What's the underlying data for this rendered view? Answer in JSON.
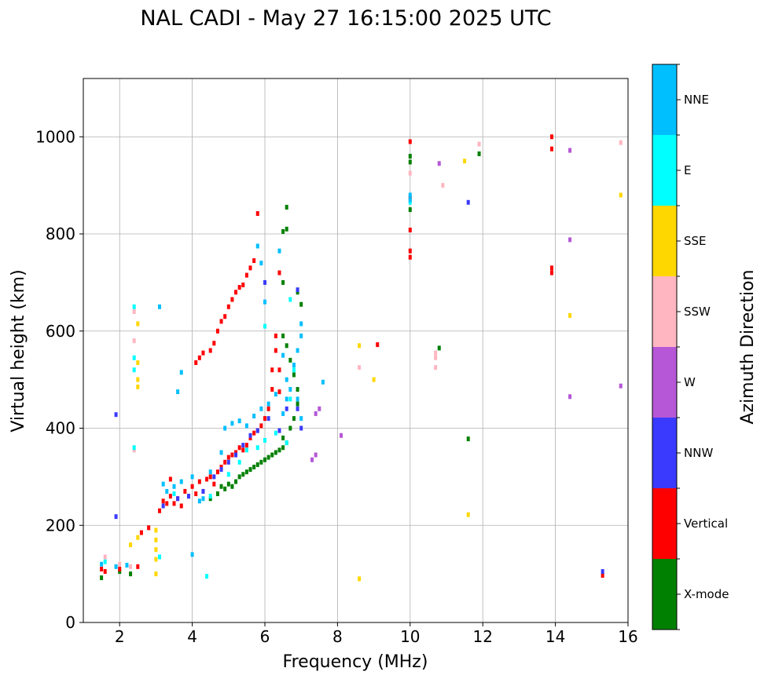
{
  "chart_data": {
    "type": "scatter",
    "title": "NAL CADI - May 27 16:15:00 2025 UTC",
    "xlabel": "Frequency (MHz)",
    "ylabel": "Virtual height (km)",
    "xlim": [
      1,
      16
    ],
    "ylim": [
      0,
      1120
    ],
    "xticks": [
      2,
      4,
      6,
      8,
      10,
      12,
      14,
      16
    ],
    "yticks": [
      0,
      200,
      400,
      600,
      800,
      1000
    ],
    "grid": true,
    "colorbar": {
      "label": "Azimuth Direction",
      "categories": [
        {
          "name": "X-mode",
          "color": "#008000"
        },
        {
          "name": "Vertical",
          "color": "#ff0000"
        },
        {
          "name": "NNW",
          "color": "#3a3aff"
        },
        {
          "name": "W",
          "color": "#b557d6"
        },
        {
          "name": "SSW",
          "color": "#ffb6c1"
        },
        {
          "name": "SSE",
          "color": "#ffd700"
        },
        {
          "name": "E",
          "color": "#00ffff"
        },
        {
          "name": "NNE",
          "color": "#00bfff"
        }
      ]
    },
    "series": [
      {
        "name": "X-mode",
        "points": [
          [
            1.5,
            92
          ],
          [
            2.0,
            105
          ],
          [
            2.3,
            100
          ],
          [
            4.5,
            255
          ],
          [
            4.7,
            265
          ],
          [
            4.8,
            280
          ],
          [
            4.9,
            275
          ],
          [
            5.0,
            285
          ],
          [
            5.1,
            280
          ],
          [
            5.2,
            290
          ],
          [
            5.3,
            300
          ],
          [
            5.4,
            305
          ],
          [
            5.5,
            310
          ],
          [
            5.6,
            315
          ],
          [
            5.7,
            320
          ],
          [
            5.8,
            325
          ],
          [
            5.9,
            330
          ],
          [
            6.0,
            335
          ],
          [
            6.1,
            340
          ],
          [
            6.2,
            345
          ],
          [
            6.3,
            350
          ],
          [
            6.4,
            355
          ],
          [
            6.5,
            360
          ],
          [
            6.5,
            380
          ],
          [
            6.6,
            370
          ],
          [
            6.7,
            400
          ],
          [
            6.8,
            420
          ],
          [
            6.9,
            450
          ],
          [
            6.9,
            480
          ],
          [
            6.8,
            510
          ],
          [
            6.7,
            540
          ],
          [
            6.6,
            570
          ],
          [
            6.5,
            590
          ],
          [
            6.5,
            805
          ],
          [
            6.6,
            810
          ],
          [
            6.6,
            855
          ],
          [
            6.9,
            680
          ],
          [
            7.0,
            655
          ],
          [
            6.4,
            720
          ],
          [
            6.5,
            700
          ],
          [
            10.0,
            960
          ],
          [
            10.0,
            948
          ],
          [
            10.0,
            850
          ],
          [
            10.8,
            565
          ],
          [
            11.9,
            965
          ],
          [
            11.6,
            378
          ]
        ]
      },
      {
        "name": "Vertical",
        "points": [
          [
            1.5,
            110
          ],
          [
            1.6,
            105
          ],
          [
            2.0,
            110
          ],
          [
            2.5,
            115
          ],
          [
            2.6,
            185
          ],
          [
            2.8,
            195
          ],
          [
            3.1,
            230
          ],
          [
            3.2,
            250
          ],
          [
            3.3,
            245
          ],
          [
            3.4,
            260
          ],
          [
            3.5,
            245
          ],
          [
            3.6,
            255
          ],
          [
            3.7,
            240
          ],
          [
            3.8,
            270
          ],
          [
            3.9,
            260
          ],
          [
            4.0,
            280
          ],
          [
            4.1,
            265
          ],
          [
            4.2,
            290
          ],
          [
            4.3,
            270
          ],
          [
            4.4,
            295
          ],
          [
            4.5,
            300
          ],
          [
            4.6,
            285
          ],
          [
            4.7,
            310
          ],
          [
            4.8,
            320
          ],
          [
            4.9,
            330
          ],
          [
            5.0,
            340
          ],
          [
            5.1,
            345
          ],
          [
            5.2,
            350
          ],
          [
            5.3,
            360
          ],
          [
            5.4,
            355
          ],
          [
            5.5,
            365
          ],
          [
            5.6,
            380
          ],
          [
            5.7,
            390
          ],
          [
            5.8,
            395
          ],
          [
            5.9,
            405
          ],
          [
            6.0,
            420
          ],
          [
            6.1,
            440
          ],
          [
            6.2,
            480
          ],
          [
            6.2,
            520
          ],
          [
            6.3,
            560
          ],
          [
            6.3,
            590
          ],
          [
            6.4,
            520
          ],
          [
            6.4,
            475
          ],
          [
            6.4,
            720
          ],
          [
            4.1,
            535
          ],
          [
            4.2,
            545
          ],
          [
            4.3,
            555
          ],
          [
            4.5,
            560
          ],
          [
            4.6,
            575
          ],
          [
            4.7,
            600
          ],
          [
            4.8,
            620
          ],
          [
            4.9,
            630
          ],
          [
            5.0,
            650
          ],
          [
            5.1,
            665
          ],
          [
            5.2,
            680
          ],
          [
            5.3,
            690
          ],
          [
            5.4,
            695
          ],
          [
            5.5,
            715
          ],
          [
            5.6,
            730
          ],
          [
            5.7,
            745
          ],
          [
            5.8,
            842
          ],
          [
            3.4,
            295
          ],
          [
            10.0,
            990
          ],
          [
            10.0,
            875
          ],
          [
            10.0,
            765
          ],
          [
            10.0,
            752
          ],
          [
            10.0,
            808
          ],
          [
            13.9,
            1000
          ],
          [
            13.9,
            975
          ],
          [
            13.9,
            730
          ],
          [
            13.9,
            720
          ],
          [
            9.1,
            572
          ],
          [
            15.3,
            97
          ]
        ]
      },
      {
        "name": "NNW",
        "points": [
          [
            1.9,
            218
          ],
          [
            1.9,
            428
          ],
          [
            3.2,
            240
          ],
          [
            3.6,
            255
          ],
          [
            3.9,
            260
          ],
          [
            4.3,
            270
          ],
          [
            4.6,
            300
          ],
          [
            4.8,
            315
          ],
          [
            5.0,
            330
          ],
          [
            5.2,
            345
          ],
          [
            5.4,
            365
          ],
          [
            5.6,
            385
          ],
          [
            5.8,
            395
          ],
          [
            6.1,
            420
          ],
          [
            6.4,
            395
          ],
          [
            6.6,
            440
          ],
          [
            6.9,
            440
          ],
          [
            7.0,
            400
          ],
          [
            6.0,
            700
          ],
          [
            6.9,
            685
          ],
          [
            11.6,
            865
          ],
          [
            15.3,
            105
          ]
        ]
      },
      {
        "name": "W",
        "points": [
          [
            7.3,
            335
          ],
          [
            7.4,
            345
          ],
          [
            7.4,
            430
          ],
          [
            7.5,
            440
          ],
          [
            8.1,
            385
          ],
          [
            10.8,
            945
          ],
          [
            14.4,
            972
          ],
          [
            14.4,
            788
          ],
          [
            14.4,
            465
          ],
          [
            15.8,
            487
          ]
        ]
      },
      {
        "name": "SSW",
        "points": [
          [
            1.6,
            135
          ],
          [
            2.0,
            120
          ],
          [
            2.3,
            115
          ],
          [
            2.4,
            355
          ],
          [
            2.4,
            580
          ],
          [
            2.4,
            640
          ],
          [
            8.6,
            525
          ],
          [
            10.7,
            525
          ],
          [
            10.7,
            545
          ],
          [
            10.7,
            555
          ],
          [
            10.9,
            900
          ],
          [
            10.0,
            925
          ],
          [
            11.9,
            985
          ],
          [
            15.8,
            988
          ]
        ]
      },
      {
        "name": "SSE",
        "points": [
          [
            2.3,
            160
          ],
          [
            2.5,
            175
          ],
          [
            3.0,
            100
          ],
          [
            3.0,
            130
          ],
          [
            3.0,
            150
          ],
          [
            3.0,
            170
          ],
          [
            3.0,
            190
          ],
          [
            2.5,
            485
          ],
          [
            2.5,
            500
          ],
          [
            2.5,
            535
          ],
          [
            2.5,
            615
          ],
          [
            8.6,
            90
          ],
          [
            8.6,
            570
          ],
          [
            9.0,
            500
          ],
          [
            11.5,
            950
          ],
          [
            11.6,
            222
          ],
          [
            14.4,
            632
          ],
          [
            15.8,
            880
          ]
        ]
      },
      {
        "name": "E",
        "points": [
          [
            1.6,
            125
          ],
          [
            2.4,
            520
          ],
          [
            2.4,
            545
          ],
          [
            2.4,
            650
          ],
          [
            2.4,
            360
          ],
          [
            3.1,
            135
          ],
          [
            3.5,
            265
          ],
          [
            4.4,
            95
          ],
          [
            4.5,
            260
          ],
          [
            5.0,
            305
          ],
          [
            5.3,
            330
          ],
          [
            5.5,
            355
          ],
          [
            5.8,
            360
          ],
          [
            6.0,
            375
          ],
          [
            6.3,
            390
          ],
          [
            6.6,
            370
          ],
          [
            6.7,
            460
          ],
          [
            6.8,
            520
          ],
          [
            6.7,
            665
          ],
          [
            6.0,
            610
          ],
          [
            10.0,
            865
          ]
        ]
      },
      {
        "name": "NNE",
        "points": [
          [
            1.5,
            120
          ],
          [
            1.9,
            115
          ],
          [
            2.2,
            118
          ],
          [
            3.2,
            285
          ],
          [
            3.3,
            270
          ],
          [
            3.5,
            280
          ],
          [
            3.7,
            290
          ],
          [
            4.0,
            300
          ],
          [
            4.3,
            255
          ],
          [
            4.5,
            310
          ],
          [
            4.8,
            350
          ],
          [
            4.9,
            400
          ],
          [
            5.1,
            410
          ],
          [
            5.3,
            415
          ],
          [
            5.5,
            405
          ],
          [
            5.7,
            425
          ],
          [
            5.9,
            440
          ],
          [
            6.1,
            450
          ],
          [
            6.3,
            470
          ],
          [
            6.5,
            430
          ],
          [
            6.6,
            460
          ],
          [
            6.7,
            480
          ],
          [
            6.9,
            460
          ],
          [
            7.0,
            420
          ],
          [
            6.8,
            530
          ],
          [
            6.9,
            560
          ],
          [
            7.0,
            590
          ],
          [
            7.0,
            615
          ],
          [
            6.6,
            500
          ],
          [
            6.5,
            550
          ],
          [
            5.9,
            740
          ],
          [
            6.0,
            660
          ],
          [
            5.8,
            775
          ],
          [
            6.4,
            765
          ],
          [
            7.6,
            495
          ],
          [
            10.0,
            870
          ],
          [
            10.0,
            880
          ],
          [
            3.1,
            650
          ],
          [
            3.7,
            515
          ],
          [
            3.6,
            475
          ],
          [
            4.0,
            140
          ],
          [
            4.2,
            250
          ]
        ]
      }
    ]
  }
}
